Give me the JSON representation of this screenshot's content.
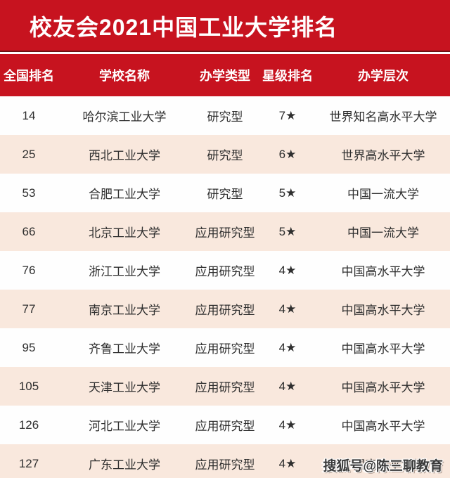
{
  "title": "校友会2021中国工业大学排名",
  "table": {
    "columns": [
      {
        "key": "rank",
        "label": "全国排名"
      },
      {
        "key": "name",
        "label": "学校名称"
      },
      {
        "key": "type",
        "label": "办学类型"
      },
      {
        "key": "star",
        "label": "星级排名"
      },
      {
        "key": "level",
        "label": "办学层次"
      }
    ],
    "rows": [
      {
        "rank": "14",
        "name": "哈尔滨工业大学",
        "type": "研究型",
        "star": "7★",
        "level": "世界知名高水平大学"
      },
      {
        "rank": "25",
        "name": "西北工业大学",
        "type": "研究型",
        "star": "6★",
        "level": "世界高水平大学"
      },
      {
        "rank": "53",
        "name": "合肥工业大学",
        "type": "研究型",
        "star": "5★",
        "level": "中国一流大学"
      },
      {
        "rank": "66",
        "name": "北京工业大学",
        "type": "应用研究型",
        "star": "5★",
        "level": "中国一流大学"
      },
      {
        "rank": "76",
        "name": "浙江工业大学",
        "type": "应用研究型",
        "star": "4★",
        "level": "中国高水平大学"
      },
      {
        "rank": "77",
        "name": "南京工业大学",
        "type": "应用研究型",
        "star": "4★",
        "level": "中国高水平大学"
      },
      {
        "rank": "95",
        "name": "齐鲁工业大学",
        "type": "应用研究型",
        "star": "4★",
        "level": "中国高水平大学"
      },
      {
        "rank": "105",
        "name": "天津工业大学",
        "type": "应用研究型",
        "star": "4★",
        "level": "中国高水平大学"
      },
      {
        "rank": "126",
        "name": "河北工业大学",
        "type": "应用研究型",
        "star": "4★",
        "level": "中国高水平大学"
      },
      {
        "rank": "127",
        "name": "广东工业大学",
        "type": "应用研究型",
        "star": "4★",
        "level": "中国高水平大学"
      }
    ]
  },
  "watermark": {
    "text": "搜狐号@陈三聊教育"
  },
  "colors": {
    "brand_red": "#c7131f",
    "row_alt": "#f9e8dd",
    "row_base": "#fefefe",
    "cell_text": "#2e2e2e",
    "header_text": "#ffffff",
    "watermark_text": "#3a3a3a"
  }
}
